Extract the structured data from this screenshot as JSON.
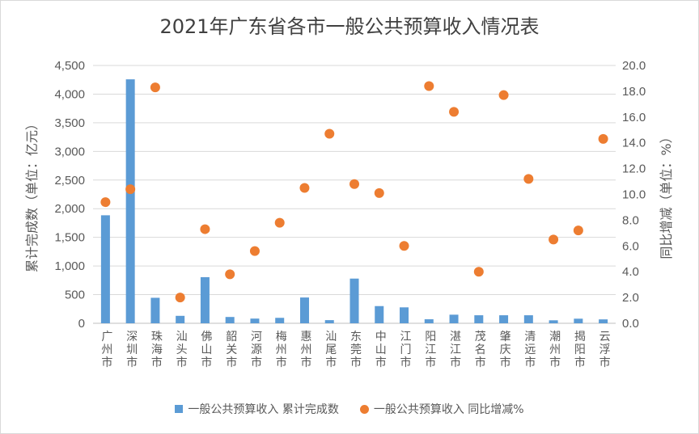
{
  "chart_data": {
    "type": "bar",
    "title": "2021年广东省各市一般公共预算收入情况表",
    "categories": [
      "广州市",
      "深圳市",
      "珠海市",
      "汕头市",
      "佛山市",
      "韶关市",
      "河源市",
      "梅州市",
      "惠州市",
      "汕尾市",
      "东莞市",
      "中山市",
      "江门市",
      "阳江市",
      "湛江市",
      "茂名市",
      "肇庆市",
      "清远市",
      "潮州市",
      "揭阳市",
      "云浮市"
    ],
    "series": [
      {
        "name": "一般公共预算收入 累计完成数",
        "type": "bar",
        "axis": "left",
        "color": "#5b9bd5",
        "values": [
          1885,
          4258,
          445,
          130,
          805,
          110,
          82,
          95,
          450,
          55,
          780,
          300,
          278,
          70,
          150,
          140,
          140,
          140,
          52,
          80,
          68
        ]
      },
      {
        "name": "一般公共预算收入 同比增减%",
        "type": "scatter",
        "axis": "right",
        "color": "#ed7d31",
        "values": [
          9.4,
          10.4,
          18.3,
          2.0,
          7.3,
          3.8,
          5.6,
          7.8,
          10.5,
          14.7,
          10.8,
          10.1,
          6.0,
          18.4,
          16.4,
          4.0,
          17.7,
          11.2,
          6.5,
          7.2,
          14.3
        ]
      }
    ],
    "ylabel": "累计完成数（单位：亿元）",
    "y2label": "同比增减（单位：%）",
    "ylim": [
      0,
      4500
    ],
    "y2lim": [
      0,
      20
    ],
    "yticks": [
      "0",
      "500",
      "1,000",
      "1,500",
      "2,000",
      "2,500",
      "3,000",
      "3,500",
      "4,000",
      "4,500"
    ],
    "y2ticks": [
      "0.0",
      "2.0",
      "4.0",
      "6.0",
      "8.0",
      "10.0",
      "12.0",
      "14.0",
      "16.0",
      "18.0",
      "20.0"
    ],
    "grid": true,
    "legend": "bottom"
  }
}
